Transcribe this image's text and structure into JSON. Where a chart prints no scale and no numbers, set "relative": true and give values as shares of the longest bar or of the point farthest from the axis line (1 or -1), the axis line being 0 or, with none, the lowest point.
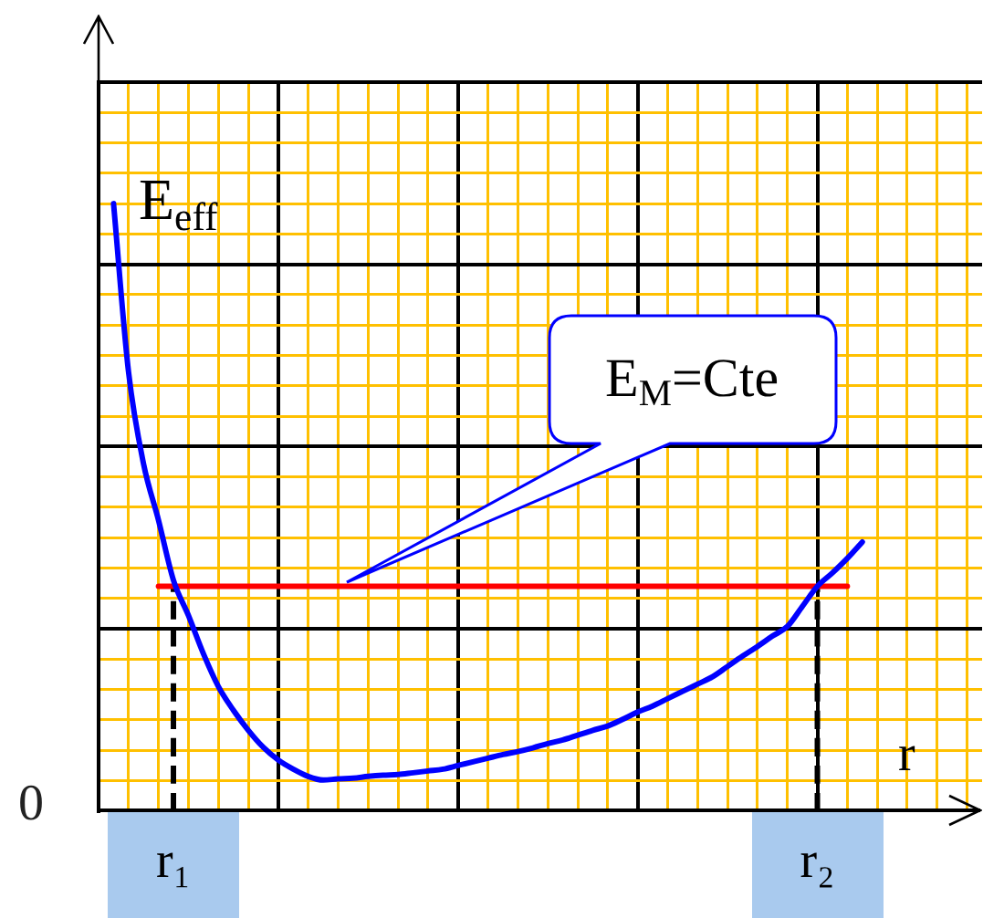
{
  "chart_data": {
    "type": "line",
    "relative": true,
    "grid": true,
    "tick_labels": "x",
    "ylabel": "E$_{eff}$",
    "xlabel": "r",
    "categories": [
      null,
      null,
      null,
      null,
      null,
      "r₁",
      null,
      null,
      null,
      null,
      null,
      null,
      null,
      null,
      null,
      null,
      null,
      null,
      null,
      null,
      null,
      null,
      null,
      null,
      null,
      null,
      null,
      null,
      null,
      null,
      null,
      null,
      null,
      null,
      null,
      null,
      null,
      null,
      null,
      null,
      null,
      null,
      null,
      null,
      null,
      null,
      null,
      null,
      "r₂",
      null,
      null,
      null,
      null,
      null,
      null,
      null,
      null,
      null,
      null,
      null
    ],
    "series": [
      {
        "color": "#0000ff",
        "values": [
          null,
          1,
          0.723,
          0.572,
          0.479,
          0.38,
          0.322,
          0.259,
          0.205,
          0.166,
          0.133,
          0.105,
          0.084,
          0.069,
          0.057,
          0.051,
          0.053,
          0.054,
          0.057,
          0.059,
          0.06,
          0.063,
          0.066,
          0.069,
          0.075,
          0.081,
          0.087,
          0.093,
          0.098,
          0.104,
          0.111,
          0.117,
          0.125,
          0.133,
          0.14,
          0.151,
          0.163,
          0.173,
          0.185,
          0.197,
          0.209,
          0.221,
          0.238,
          0.255,
          0.271,
          0.288,
          0.304,
          0.337,
          0.37,
          0.392,
          0.416,
          0.443,
          null,
          null,
          null,
          null,
          null,
          null,
          null,
          null
        ]
      },
      {
        "color": "#ff0000",
        "values": [
          null,
          null,
          null,
          null,
          0.37,
          0.37,
          0.37,
          0.37,
          0.37,
          0.37,
          0.37,
          0.37,
          0.37,
          0.37,
          0.37,
          0.37,
          0.37,
          0.37,
          0.37,
          0.37,
          0.37,
          0.37,
          0.37,
          0.37,
          0.37,
          0.37,
          0.37,
          0.37,
          0.37,
          0.37,
          0.37,
          0.37,
          0.37,
          0.37,
          0.37,
          0.37,
          0.37,
          0.37,
          0.37,
          0.37,
          0.37,
          0.37,
          0.37,
          0.37,
          0.37,
          0.37,
          0.37,
          0.37,
          0.37,
          0.37,
          0.37,
          null,
          null,
          null,
          null,
          null,
          null,
          null,
          null,
          null
        ]
      },
      {
        "color": "#000000",
        "line_style": "dashed",
        "x": [
          "r₁",
          "r₁"
        ],
        "values": [
          0,
          0.37
        ]
      },
      {
        "color": "#000000",
        "line_style": "dashed",
        "x": [
          "r₂",
          "r₂"
        ],
        "values": [
          0,
          0.37
        ]
      }
    ],
    "annotations": [
      "E$_{M}$=Cte",
      "0"
    ]
  }
}
